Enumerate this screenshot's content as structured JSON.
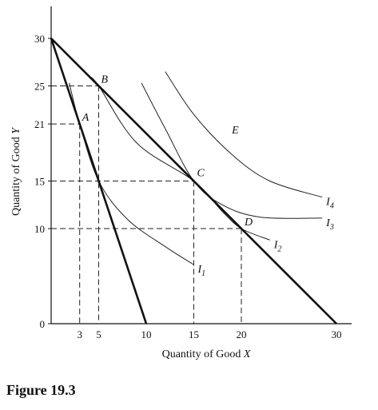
{
  "chart_data": {
    "type": "line",
    "xlabel_prefix": "Quantity of Good ",
    "xlabel_var": "X",
    "ylabel_prefix": "Quantity of Good ",
    "ylabel_var": "Y",
    "xlim": [
      0,
      30
    ],
    "ylim": [
      0,
      30
    ],
    "x_ticks": [
      3,
      5,
      10,
      15,
      20,
      30
    ],
    "y_ticks": [
      0,
      10,
      15,
      21,
      25,
      30
    ],
    "budget_lines": [
      {
        "name": "steep",
        "from": [
          0,
          30
        ],
        "to": [
          10,
          0
        ]
      },
      {
        "name": "flat",
        "from": [
          0,
          30
        ],
        "to": [
          30,
          0
        ]
      }
    ],
    "indifference_curves": [
      {
        "label": "I",
        "sub": "1",
        "points": [
          [
            1.9,
            25.3
          ],
          [
            3,
            21
          ],
          [
            5,
            15
          ],
          [
            8,
            11
          ],
          [
            12,
            8.1
          ],
          [
            15,
            6.2
          ]
        ]
      },
      {
        "label": "I",
        "sub": "2",
        "points": [
          [
            4,
            26
          ],
          [
            5,
            25
          ],
          [
            9,
            19
          ],
          [
            15,
            15
          ],
          [
            18,
            11.8
          ],
          [
            20,
            10
          ],
          [
            23,
            8.8
          ]
        ]
      },
      {
        "label": "I",
        "sub": "3",
        "points": [
          [
            9.5,
            25.3
          ],
          [
            12,
            20.5
          ],
          [
            15,
            15
          ],
          [
            18,
            12.5
          ],
          [
            22,
            11.2
          ],
          [
            28.5,
            11.1
          ]
        ]
      },
      {
        "label": "I",
        "sub": "4",
        "points": [
          [
            12,
            26.5
          ],
          [
            15,
            22
          ],
          [
            19,
            17.8
          ],
          [
            23,
            15
          ],
          [
            28.5,
            13.3
          ]
        ]
      }
    ],
    "points": [
      {
        "label": "A",
        "x": 3,
        "y": 21
      },
      {
        "label": "B",
        "x": 5,
        "y": 25
      },
      {
        "label": "C",
        "x": 15,
        "y": 15
      },
      {
        "label": "D",
        "x": 20,
        "y": 10
      }
    ],
    "annotations": [
      {
        "label": "E",
        "x": 19,
        "y": 20
      }
    ]
  },
  "caption": "Figure 19.3"
}
